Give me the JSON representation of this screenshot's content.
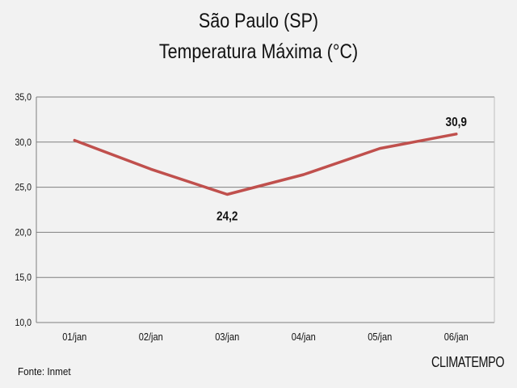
{
  "header": {
    "title_line1": "São Paulo (SP)",
    "title_line2": "Temperatura Máxima (°C)"
  },
  "footer": {
    "source": "Fonte: Inmet",
    "logo": "CLIMATEMPO"
  },
  "chart_data": {
    "type": "line",
    "title": "São Paulo (SP) Temperatura Máxima (°C)",
    "categories": [
      "01/jan",
      "02/jan",
      "03/jan",
      "04/jan",
      "05/jan",
      "06/jan"
    ],
    "series": [
      {
        "values": [
          30.2,
          27.0,
          24.2,
          26.4,
          29.3,
          30.9
        ],
        "color": "#c0504d"
      }
    ],
    "ylim": [
      10,
      35
    ],
    "yticks": [
      "10,0",
      "15,0",
      "20,0",
      "25,0",
      "30,0",
      "35,0"
    ],
    "data_labels": [
      {
        "index": 2,
        "text": "24,2",
        "position": "below"
      },
      {
        "index": 5,
        "text": "30,9",
        "position": "above"
      }
    ],
    "grid": true,
    "colors": {
      "line": "#c0504d",
      "grid": "#7f7f7f",
      "background": "#f2f2f2"
    }
  }
}
